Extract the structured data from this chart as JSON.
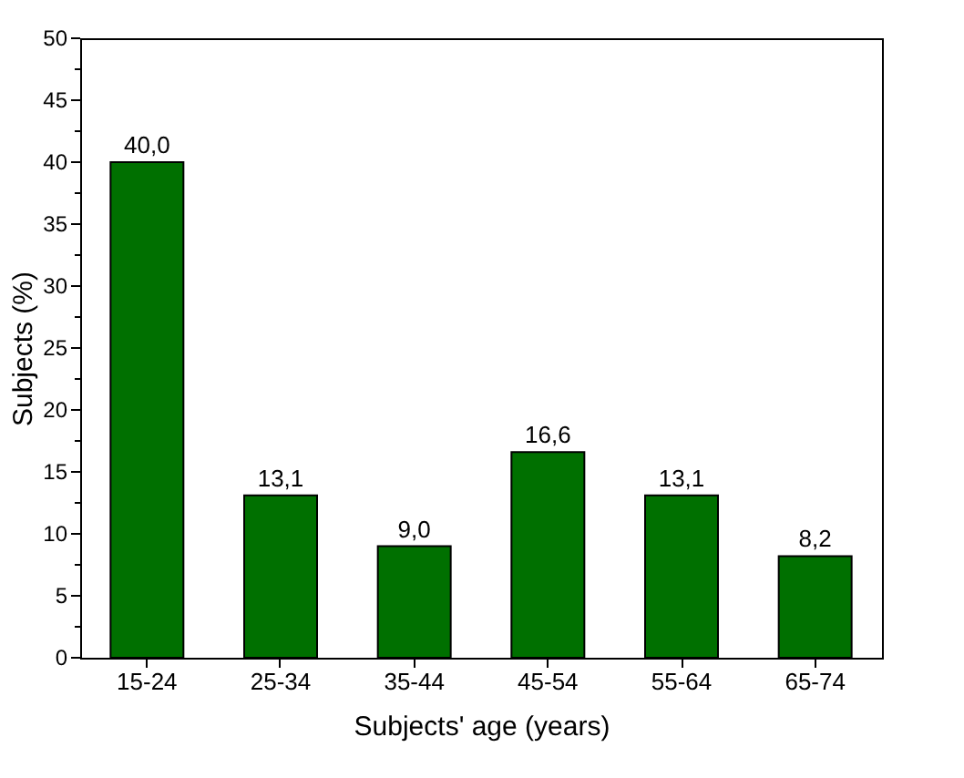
{
  "chart_data": {
    "type": "bar",
    "xlabel": "Subjects' age (years)",
    "ylabel": "Subjects (%)",
    "categories": [
      "15-24",
      "25-34",
      "35-44",
      "45-54",
      "55-64",
      "65-74"
    ],
    "values": [
      40.0,
      13.1,
      9.0,
      16.6,
      13.1,
      8.2
    ],
    "value_labels": [
      "40,0",
      "13,1",
      "9,0",
      "16,6",
      "13,1",
      "8,2"
    ],
    "color": "#007000",
    "ylim": [
      0,
      50
    ],
    "yticks": [
      0,
      {
        "value": 2.5,
        "label": null
      },
      5,
      {
        "value": 7.5,
        "label": null
      },
      10,
      {
        "value": 12.5,
        "label": null
      },
      15,
      {
        "value": 17.5,
        "label": null
      },
      20,
      {
        "value": 22.5,
        "label": null
      },
      25,
      {
        "value": 27.5,
        "label": null
      },
      30,
      {
        "value": 32.5,
        "label": null
      },
      35,
      {
        "value": 37.5,
        "label": null
      },
      40,
      {
        "value": 42.5,
        "label": null
      },
      45,
      {
        "value": 47.5,
        "label": null
      },
      50
    ],
    "grid": false
  }
}
